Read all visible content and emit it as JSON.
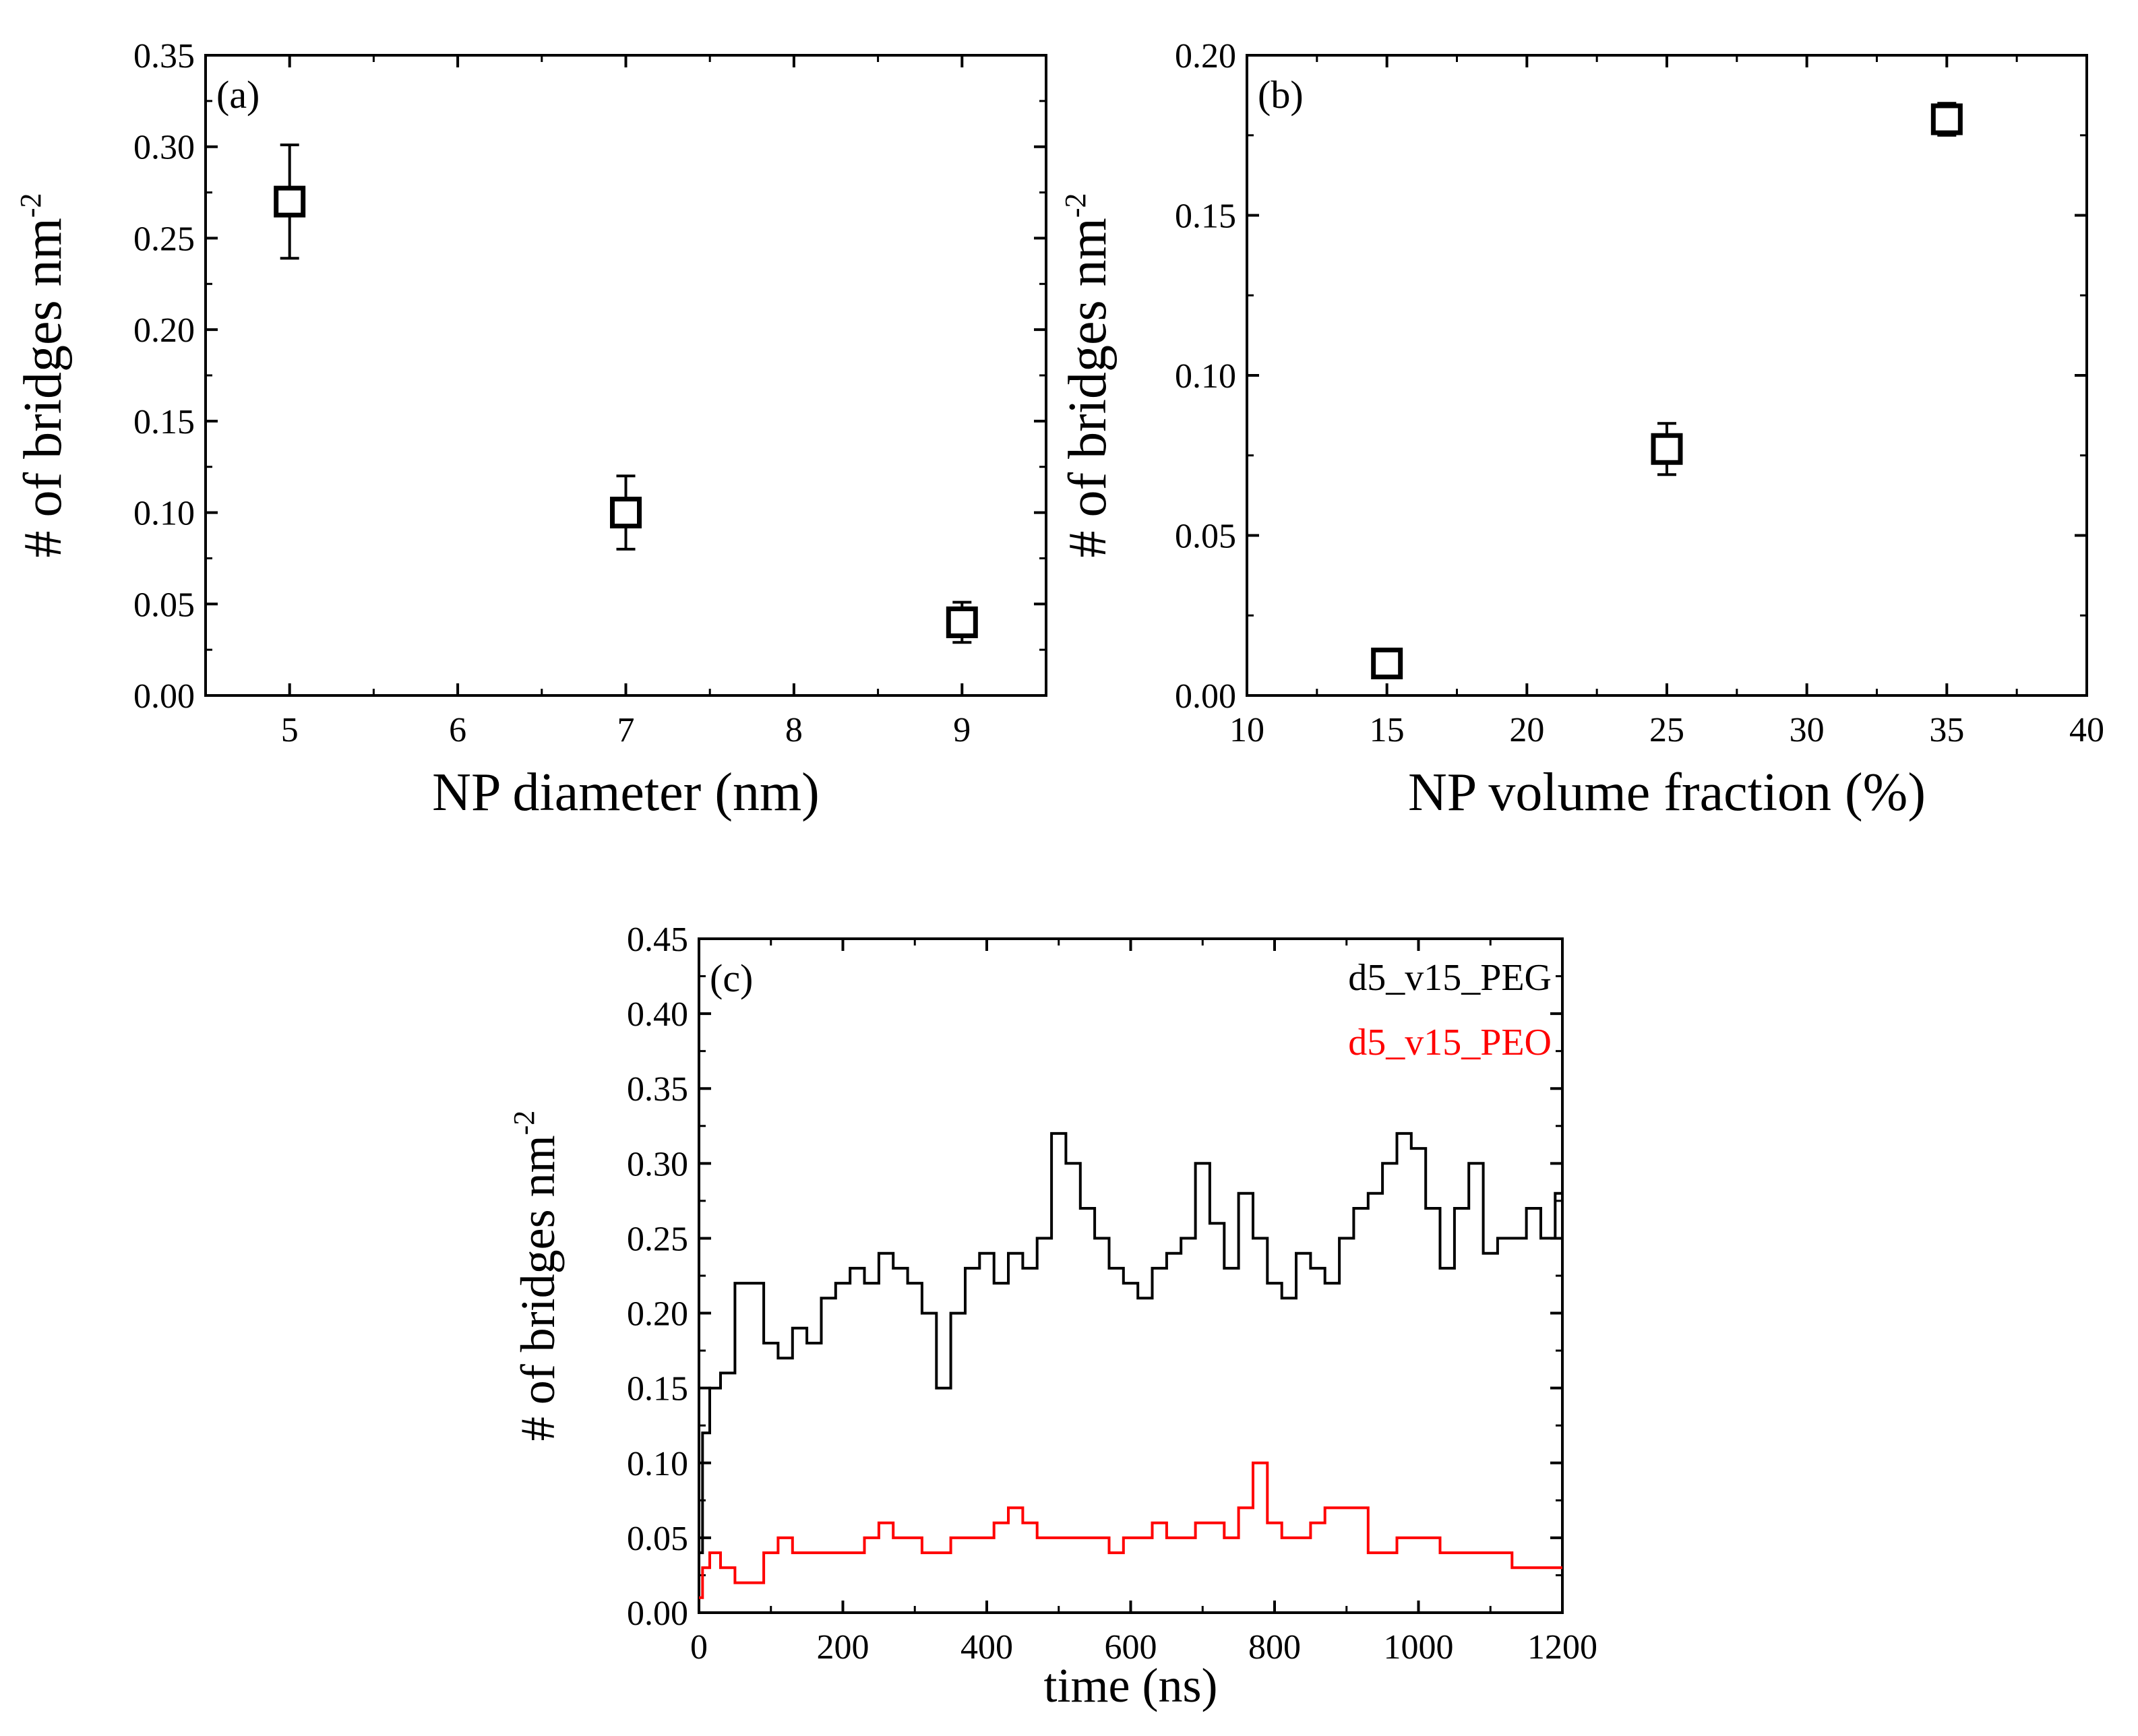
{
  "colors": {
    "peg": "#000000",
    "peo": "#ff0000",
    "axis": "#000000",
    "background": "#ffffff"
  },
  "chart_data": [
    {
      "id": "a",
      "type": "scatter",
      "panel_label": "(a)",
      "xlabel": "NP diameter (nm)",
      "ylabel_main": "# of bridges nm",
      "ylabel_sup": "-2",
      "xlim": [
        4.5,
        9.5
      ],
      "ylim": [
        0,
        0.35
      ],
      "xticks": [
        5,
        6,
        7,
        8,
        9
      ],
      "xtick_labels": [
        "5",
        "6",
        "7",
        "8",
        "9"
      ],
      "yticks": [
        0,
        0.05,
        0.1,
        0.15,
        0.2,
        0.25,
        0.3,
        0.35
      ],
      "ytick_labels": [
        "0.00",
        "0.05",
        "0.10",
        "0.15",
        "0.20",
        "0.25",
        "0.30",
        "0.35"
      ],
      "points": [
        {
          "x": 5,
          "y": 0.27,
          "err": 0.031
        },
        {
          "x": 7,
          "y": 0.1,
          "err": 0.02
        },
        {
          "x": 9,
          "y": 0.04,
          "err": 0.011
        }
      ]
    },
    {
      "id": "b",
      "type": "scatter",
      "panel_label": "(b)",
      "xlabel": "NP volume fraction (%)",
      "ylabel_main": "# of bridges nm",
      "ylabel_sup": "-2",
      "xlim": [
        10,
        40
      ],
      "ylim": [
        0,
        0.2
      ],
      "xticks": [
        10,
        15,
        20,
        25,
        30,
        35,
        40
      ],
      "xtick_labels": [
        "10",
        "15",
        "20",
        "25",
        "30",
        "35",
        "40"
      ],
      "yticks": [
        0,
        0.05,
        0.1,
        0.15,
        0.2
      ],
      "ytick_labels": [
        "0.00",
        "0.05",
        "0.10",
        "0.15",
        "0.20"
      ],
      "points": [
        {
          "x": 15,
          "y": 0.01,
          "err": 0.002
        },
        {
          "x": 25,
          "y": 0.077,
          "err": 0.008
        },
        {
          "x": 35,
          "y": 0.18,
          "err": 0.005
        }
      ]
    },
    {
      "id": "c",
      "type": "line",
      "panel_label": "(c)",
      "xlabel": "time (ns)",
      "ylabel_main": "# of bridges nm",
      "ylabel_sup": "-2",
      "xlim": [
        0,
        1200
      ],
      "ylim": [
        0,
        0.45
      ],
      "xticks": [
        0,
        200,
        400,
        600,
        800,
        1000,
        1200
      ],
      "xtick_labels": [
        "0",
        "200",
        "400",
        "600",
        "800",
        "1000",
        "1200"
      ],
      "yticks": [
        0,
        0.05,
        0.1,
        0.15,
        0.2,
        0.25,
        0.3,
        0.35,
        0.4,
        0.45
      ],
      "ytick_labels": [
        "0.00",
        "0.05",
        "0.10",
        "0.15",
        "0.20",
        "0.25",
        "0.30",
        "0.35",
        "0.40",
        "0.45"
      ],
      "legend_position": "top-right",
      "series": [
        {
          "name": "d5_v15_PEG",
          "color": "#000000",
          "x": [
            0,
            10,
            20,
            40,
            60,
            80,
            100,
            120,
            140,
            160,
            180,
            200,
            220,
            240,
            260,
            280,
            300,
            320,
            340,
            360,
            380,
            400,
            420,
            440,
            460,
            480,
            500,
            520,
            540,
            560,
            580,
            600,
            620,
            640,
            660,
            680,
            700,
            720,
            740,
            760,
            780,
            800,
            820,
            840,
            860,
            880,
            900,
            920,
            940,
            960,
            980,
            1000,
            1020,
            1040,
            1060,
            1080,
            1100,
            1120,
            1140,
            1160,
            1180,
            1200
          ],
          "y": [
            0.04,
            0.12,
            0.15,
            0.16,
            0.22,
            0.22,
            0.18,
            0.17,
            0.19,
            0.18,
            0.21,
            0.22,
            0.23,
            0.22,
            0.24,
            0.23,
            0.22,
            0.2,
            0.15,
            0.2,
            0.23,
            0.24,
            0.22,
            0.24,
            0.23,
            0.25,
            0.32,
            0.3,
            0.27,
            0.25,
            0.23,
            0.22,
            0.21,
            0.23,
            0.24,
            0.25,
            0.3,
            0.26,
            0.23,
            0.28,
            0.25,
            0.22,
            0.21,
            0.24,
            0.23,
            0.22,
            0.25,
            0.27,
            0.28,
            0.3,
            0.32,
            0.31,
            0.27,
            0.23,
            0.27,
            0.3,
            0.24,
            0.25,
            0.25,
            0.27,
            0.25,
            0.28
          ]
        },
        {
          "name": "d5_v15_PEO",
          "color": "#ff0000",
          "x": [
            0,
            10,
            20,
            40,
            60,
            80,
            100,
            120,
            140,
            160,
            180,
            200,
            220,
            240,
            260,
            280,
            300,
            320,
            340,
            360,
            380,
            400,
            420,
            440,
            460,
            480,
            500,
            520,
            540,
            560,
            580,
            600,
            620,
            640,
            660,
            680,
            700,
            720,
            740,
            760,
            780,
            800,
            820,
            840,
            860,
            880,
            900,
            920,
            940,
            960,
            980,
            1000,
            1020,
            1040,
            1060,
            1080,
            1100,
            1120,
            1140,
            1160,
            1180,
            1200
          ],
          "y": [
            0.01,
            0.03,
            0.04,
            0.03,
            0.02,
            0.02,
            0.04,
            0.05,
            0.04,
            0.04,
            0.04,
            0.04,
            0.04,
            0.05,
            0.06,
            0.05,
            0.05,
            0.04,
            0.04,
            0.05,
            0.05,
            0.05,
            0.06,
            0.07,
            0.06,
            0.05,
            0.05,
            0.05,
            0.05,
            0.05,
            0.04,
            0.05,
            0.05,
            0.06,
            0.05,
            0.05,
            0.06,
            0.06,
            0.05,
            0.07,
            0.1,
            0.06,
            0.05,
            0.05,
            0.06,
            0.07,
            0.07,
            0.07,
            0.04,
            0.04,
            0.05,
            0.05,
            0.05,
            0.04,
            0.04,
            0.04,
            0.04,
            0.04,
            0.03,
            0.03,
            0.03,
            0.03
          ]
        }
      ]
    }
  ]
}
